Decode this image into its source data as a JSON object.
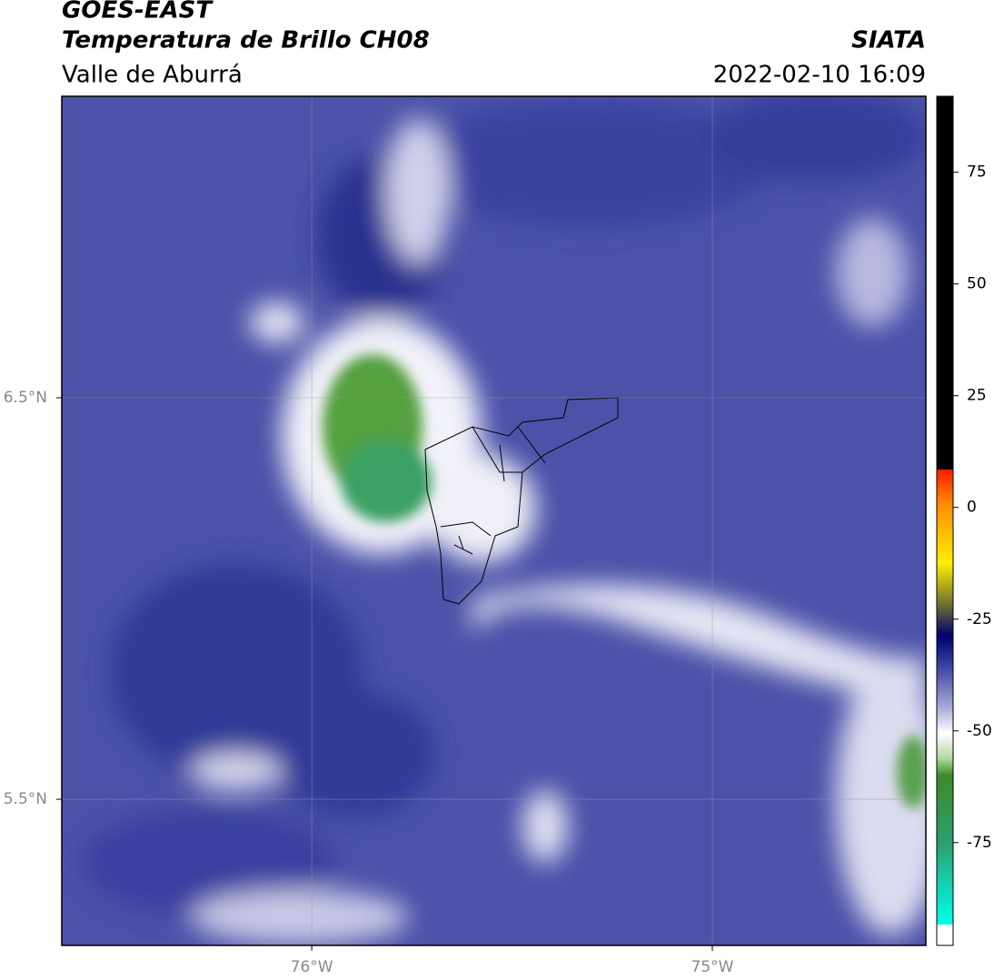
{
  "header": {
    "title": "GOES-EAST",
    "subtitle": "Temperatura de Brillo CH08",
    "region": "Valle de Aburrá",
    "source": "SIATA",
    "datetime": "2022-02-10 16:09"
  },
  "chart_data": {
    "type": "map",
    "grid": true,
    "xlim": [
      -76.624,
      -74.467
    ],
    "ylim": [
      5.136,
      7.251
    ],
    "xticks": [
      {
        "value": -76,
        "label": "76°W"
      },
      {
        "value": -75,
        "label": "75°W"
      }
    ],
    "yticks": [
      {
        "value": 5.5,
        "label": "5.5°N"
      },
      {
        "value": 6.5,
        "label": "6.5°N"
      }
    ],
    "colorbar": {
      "lim": [
        -98,
        92
      ],
      "ticks": [
        -75,
        -50,
        -25,
        0,
        25,
        50,
        75
      ]
    }
  }
}
